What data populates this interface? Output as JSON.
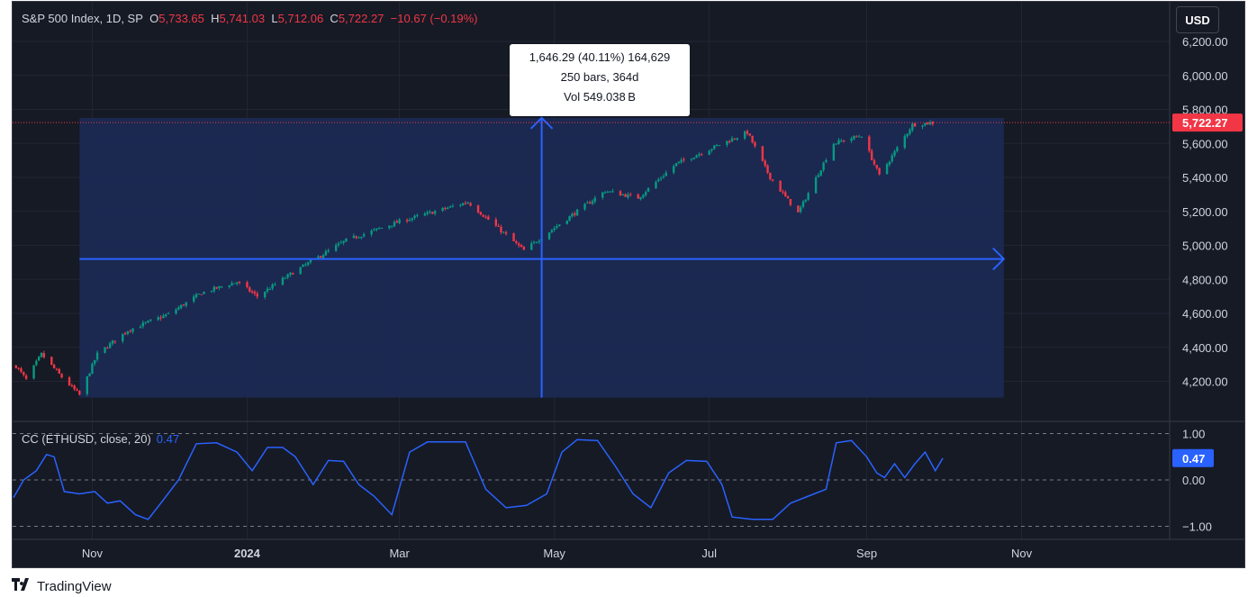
{
  "header": {
    "symbol": "S&P 500 Index, 1D, SP",
    "open_label": "O",
    "open": "5,733.65",
    "high_label": "H",
    "high": "5,741.03",
    "low_label": "L",
    "low": "5,712.06",
    "close_label": "C",
    "close": "5,722.27",
    "change": "−10.67 (−0.19%)"
  },
  "currency_button": "USD",
  "measure_tooltip": {
    "line1": "1,646.29 (40.11%) 164,629",
    "line2": "250 bars, 364d",
    "line3": "Vol 549.038 B"
  },
  "indicator": {
    "label": "CC (ETHUSD, close, 20)",
    "value": "0.47"
  },
  "footer": {
    "brand": "TradingView"
  },
  "colors": {
    "background": "#161a25",
    "up": "#089981",
    "down": "#f23645",
    "accent": "#2962ff",
    "measure_fill": "#1c2a55",
    "text": "#d1d4dc"
  },
  "chart_data": [
    {
      "type": "candlestick",
      "title": "S&P 500 Index, 1D, SP",
      "x_ticks": [
        "Nov",
        "2024",
        "Mar",
        "May",
        "Jul",
        "Sep",
        "Nov"
      ],
      "y_ticks": [
        "4,200.00",
        "4,400.00",
        "4,600.00",
        "4,800.00",
        "5,000.00",
        "5,200.00",
        "5,400.00",
        "5,600.00",
        "5,800.00",
        "6,000.00",
        "6,200.00"
      ],
      "ylim": [
        4090,
        6300
      ],
      "last_price": 5722.27,
      "last_price_label": "5,722.27",
      "price_path": [
        {
          "x": "2023-10-02",
          "y": 4290
        },
        {
          "x": "2023-10-06",
          "y": 4210
        },
        {
          "x": "2023-10-12",
          "y": 4360
        },
        {
          "x": "2023-10-20",
          "y": 4225
        },
        {
          "x": "2023-10-27",
          "y": 4120
        },
        {
          "x": "2023-11-03",
          "y": 4360
        },
        {
          "x": "2023-11-15",
          "y": 4500
        },
        {
          "x": "2023-12-01",
          "y": 4595
        },
        {
          "x": "2023-12-14",
          "y": 4720
        },
        {
          "x": "2023-12-28",
          "y": 4785
        },
        {
          "x": "2024-01-05",
          "y": 4700
        },
        {
          "x": "2024-01-19",
          "y": 4840
        },
        {
          "x": "2024-02-09",
          "y": 5030
        },
        {
          "x": "2024-03-01",
          "y": 5140
        },
        {
          "x": "2024-03-28",
          "y": 5255
        },
        {
          "x": "2024-04-19",
          "y": 4970
        },
        {
          "x": "2024-05-03",
          "y": 5125
        },
        {
          "x": "2024-05-21",
          "y": 5320
        },
        {
          "x": "2024-06-03",
          "y": 5280
        },
        {
          "x": "2024-06-18",
          "y": 5480
        },
        {
          "x": "2024-07-16",
          "y": 5665
        },
        {
          "x": "2024-07-25",
          "y": 5400
        },
        {
          "x": "2024-08-05",
          "y": 5190
        },
        {
          "x": "2024-08-19",
          "y": 5600
        },
        {
          "x": "2024-08-30",
          "y": 5648
        },
        {
          "x": "2024-09-06",
          "y": 5410
        },
        {
          "x": "2024-09-19",
          "y": 5710
        },
        {
          "x": "2024-09-27",
          "y": 5722
        }
      ],
      "measure": {
        "start": {
          "x": "2023-10-27",
          "y": 4104
        },
        "end": {
          "x": "2024-10-25",
          "y": 5750
        },
        "change": "1,646.29 (40.11%) 164,629",
        "bars": "250 bars, 364d",
        "volume": "Vol 549.038 B"
      }
    },
    {
      "type": "line",
      "title": "CC (ETHUSD, close, 20)",
      "y_ticks": [
        "1.00",
        "0.00",
        "−1.00"
      ],
      "ylim": [
        -1.0,
        1.0
      ],
      "last_value": 0.47,
      "series": [
        {
          "x": "2023-10-01",
          "y": -0.38
        },
        {
          "x": "2023-10-05",
          "y": 0.0
        },
        {
          "x": "2023-10-10",
          "y": 0.2
        },
        {
          "x": "2023-10-14",
          "y": 0.55
        },
        {
          "x": "2023-10-17",
          "y": 0.5
        },
        {
          "x": "2023-10-21",
          "y": -0.25
        },
        {
          "x": "2023-10-27",
          "y": -0.3
        },
        {
          "x": "2023-11-02",
          "y": -0.25
        },
        {
          "x": "2023-11-07",
          "y": -0.5
        },
        {
          "x": "2023-11-12",
          "y": -0.45
        },
        {
          "x": "2023-11-18",
          "y": -0.75
        },
        {
          "x": "2023-11-23",
          "y": -0.85
        },
        {
          "x": "2023-11-28",
          "y": -0.5
        },
        {
          "x": "2023-12-05",
          "y": 0.0
        },
        {
          "x": "2023-12-12",
          "y": 0.78
        },
        {
          "x": "2023-12-20",
          "y": 0.8
        },
        {
          "x": "2023-12-28",
          "y": 0.6
        },
        {
          "x": "2024-01-03",
          "y": 0.2
        },
        {
          "x": "2024-01-09",
          "y": 0.7
        },
        {
          "x": "2024-01-15",
          "y": 0.7
        },
        {
          "x": "2024-01-20",
          "y": 0.5
        },
        {
          "x": "2024-01-27",
          "y": -0.1
        },
        {
          "x": "2024-02-02",
          "y": 0.42
        },
        {
          "x": "2024-02-08",
          "y": 0.4
        },
        {
          "x": "2024-02-14",
          "y": -0.1
        },
        {
          "x": "2024-02-20",
          "y": -0.35
        },
        {
          "x": "2024-02-27",
          "y": -0.75
        },
        {
          "x": "2024-03-05",
          "y": 0.6
        },
        {
          "x": "2024-03-12",
          "y": 0.82
        },
        {
          "x": "2024-03-19",
          "y": 0.82
        },
        {
          "x": "2024-03-27",
          "y": 0.82
        },
        {
          "x": "2024-04-04",
          "y": -0.2
        },
        {
          "x": "2024-04-12",
          "y": -0.6
        },
        {
          "x": "2024-04-20",
          "y": -0.55
        },
        {
          "x": "2024-04-28",
          "y": -0.3
        },
        {
          "x": "2024-05-04",
          "y": 0.6
        },
        {
          "x": "2024-05-10",
          "y": 0.87
        },
        {
          "x": "2024-05-18",
          "y": 0.85
        },
        {
          "x": "2024-05-25",
          "y": 0.3
        },
        {
          "x": "2024-06-01",
          "y": -0.3
        },
        {
          "x": "2024-06-08",
          "y": -0.6
        },
        {
          "x": "2024-06-15",
          "y": 0.15
        },
        {
          "x": "2024-06-22",
          "y": 0.42
        },
        {
          "x": "2024-06-30",
          "y": 0.4
        },
        {
          "x": "2024-07-06",
          "y": -0.1
        },
        {
          "x": "2024-07-10",
          "y": -0.8
        },
        {
          "x": "2024-07-18",
          "y": -0.85
        },
        {
          "x": "2024-07-26",
          "y": -0.85
        },
        {
          "x": "2024-08-02",
          "y": -0.5
        },
        {
          "x": "2024-08-09",
          "y": -0.35
        },
        {
          "x": "2024-08-16",
          "y": -0.2
        },
        {
          "x": "2024-08-20",
          "y": 0.8
        },
        {
          "x": "2024-08-26",
          "y": 0.85
        },
        {
          "x": "2024-09-01",
          "y": 0.5
        },
        {
          "x": "2024-09-05",
          "y": 0.15
        },
        {
          "x": "2024-09-08",
          "y": 0.05
        },
        {
          "x": "2024-09-12",
          "y": 0.35
        },
        {
          "x": "2024-09-16",
          "y": 0.05
        },
        {
          "x": "2024-09-20",
          "y": 0.35
        },
        {
          "x": "2024-09-24",
          "y": 0.6
        },
        {
          "x": "2024-09-28",
          "y": 0.2
        },
        {
          "x": "2024-10-01",
          "y": 0.47
        }
      ]
    }
  ]
}
